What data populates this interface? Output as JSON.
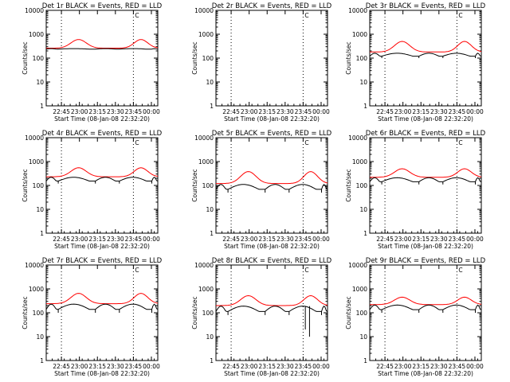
{
  "chart_data": {
    "type": "line",
    "layout": "3x3 grid",
    "shared_xlabel": "Start Time (08-Jan-08 22:32:20)",
    "shared_ylabel": "Counts/sec",
    "x_ticks": [
      "22:45",
      "23:00",
      "23:15",
      "23:30",
      "23:45",
      "00:00"
    ],
    "y_ticks": [
      "1",
      "10",
      "100",
      "1000",
      "10000"
    ],
    "ylim": [
      1,
      10000
    ],
    "yscale": "log",
    "xlim_minutes_after_2232": [
      0,
      93
    ],
    "marker_label": "C",
    "series_colors": {
      "events": "#000000",
      "lld": "#ff0000"
    },
    "panels": [
      {
        "title": "Det 1r  BLACK = Events, RED = LLD",
        "events_base": 230,
        "events_top": 250,
        "lld_base": 260,
        "lld_peak": 600,
        "spikes": []
      },
      {
        "title": "Det 2r  BLACK = Events, RED = LLD",
        "events_base": null,
        "events_top": null,
        "lld_base": null,
        "lld_peak": null,
        "spikes": []
      },
      {
        "title": "Det 3r  BLACK = Events, RED = LLD",
        "events_base": 100,
        "events_top": 160,
        "lld_base": 180,
        "lld_peak": 500,
        "spikes": []
      },
      {
        "title": "Det 4r  BLACK = Events, RED = LLD",
        "events_base": 120,
        "events_top": 220,
        "lld_base": 230,
        "lld_peak": 550,
        "spikes": []
      },
      {
        "title": "Det 5r  BLACK = Events, RED = LLD",
        "events_base": 50,
        "events_top": 110,
        "lld_base": 120,
        "lld_peak": 380,
        "spikes": []
      },
      {
        "title": "Det 6r  BLACK = Events, RED = LLD",
        "events_base": 110,
        "events_top": 210,
        "lld_base": 220,
        "lld_peak": 500,
        "spikes": []
      },
      {
        "title": "Det 7r  BLACK = Events, RED = LLD",
        "events_base": 100,
        "events_top": 230,
        "lld_base": 240,
        "lld_peak": 650,
        "spikes": []
      },
      {
        "title": "Det 8r  BLACK = Events, RED = LLD",
        "events_base": 80,
        "events_top": 190,
        "lld_base": 200,
        "lld_peak": 520,
        "spikes": [
          {
            "t": 74.5,
            "min": 20
          },
          {
            "t": 78,
            "min": 10
          }
        ]
      },
      {
        "title": "Det 9r  BLACK = Events, RED = LLD",
        "events_base": 100,
        "events_top": 210,
        "lld_base": 220,
        "lld_peak": 450,
        "spikes": []
      }
    ]
  }
}
